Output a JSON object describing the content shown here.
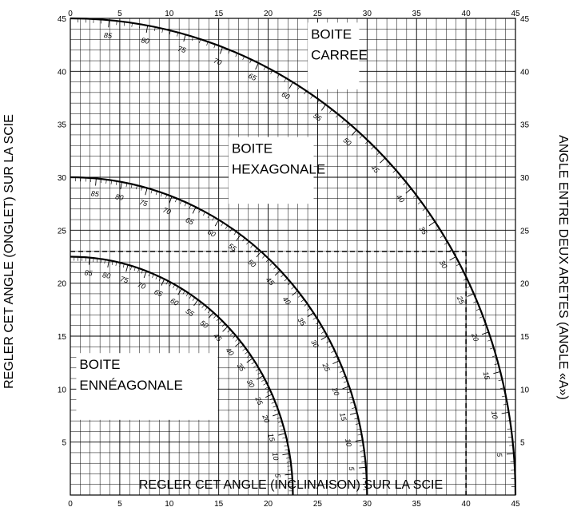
{
  "chart_data": {
    "type": "line",
    "xlabel": "REGLER CET ANGLE (INCLINAISON) SUR LA SCIE",
    "ylabel": "REGLER CET ANGLE (ONGLET) SUR LA SCIE",
    "y2label": "ANGLE ENTRE DEUX ARETES (ANGLE «A»)",
    "xlim": [
      0,
      45
    ],
    "ylim": [
      0,
      45
    ],
    "ticks": [
      0,
      5,
      10,
      15,
      20,
      25,
      30,
      35,
      40,
      45
    ],
    "tick_labels_x": [
      "0",
      "5",
      "10",
      "15",
      "20",
      "25",
      "30",
      "35",
      "40",
      "45"
    ],
    "tick_labels_y": [
      "5",
      "10",
      "15",
      "20",
      "25",
      "30",
      "35",
      "40",
      "45"
    ],
    "tick_labels_y_right": [
      "5",
      "10",
      "15",
      "20",
      "25",
      "30",
      "35",
      "40",
      "45"
    ],
    "grid": true,
    "minor_grid_step": 1,
    "series": [
      {
        "name": "BOITE CARREE",
        "label_lines": [
          "BOITE",
          "CARREE"
        ],
        "radius": 45,
        "angle_labels": [
          "85",
          "80",
          "75",
          "70",
          "65",
          "60",
          "55",
          "50",
          "45",
          "40",
          "35",
          "30",
          "25",
          "20",
          "15",
          "10",
          "5"
        ]
      },
      {
        "name": "BOITE HEXAGONALE",
        "label_lines": [
          "BOITE",
          "HEXAGONALE"
        ],
        "radius": 30,
        "angle_labels": [
          "85",
          "80",
          "75",
          "70",
          "65",
          "60",
          "55",
          "50",
          "45",
          "40",
          "35",
          "30",
          "25",
          "20",
          "15",
          "10",
          "5"
        ]
      },
      {
        "name": "BOITE ENNÉAGONALE",
        "label_lines": [
          "BOITE",
          "ENNÉAGONALE"
        ],
        "radius": 22.5,
        "angle_labels": [
          "85",
          "80",
          "75",
          "70",
          "65",
          "60",
          "55",
          "50",
          "45",
          "40",
          "35",
          "30",
          "25",
          "20",
          "15",
          "10",
          "5"
        ]
      }
    ],
    "example_point": {
      "x": 40,
      "y": 23
    }
  }
}
